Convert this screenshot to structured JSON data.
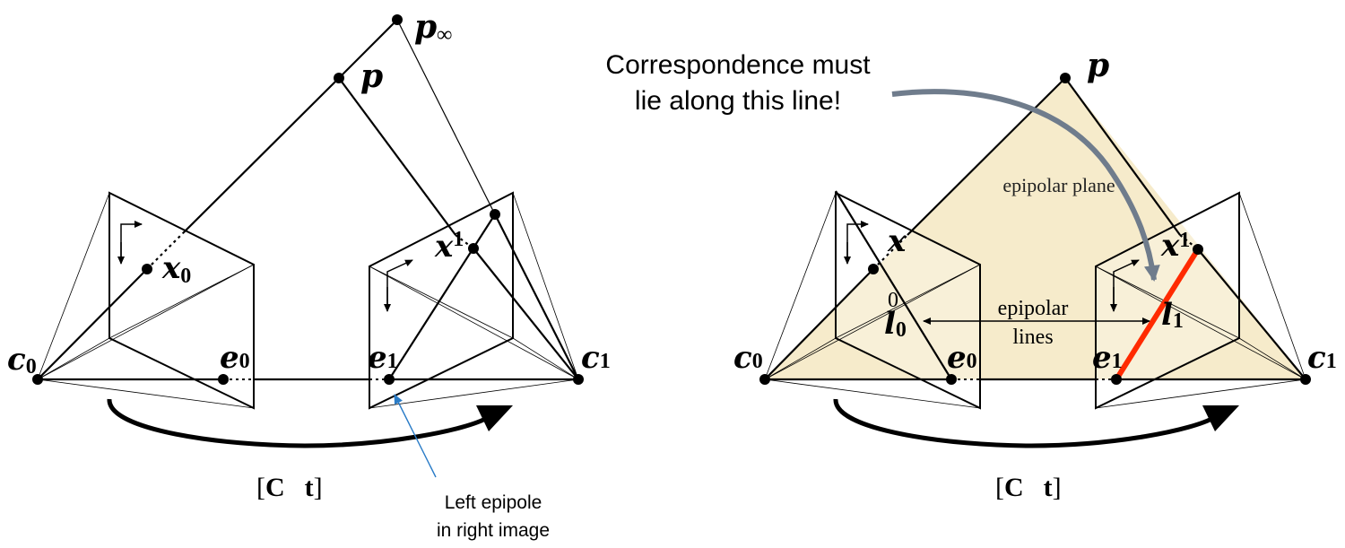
{
  "colors": {
    "line": "#000000",
    "plane_fill": "#f4e7c2",
    "highlight": "#ff2a00",
    "callout_arrow": "#6f7c8c",
    "epipole_pointer": "#2a7cc7"
  },
  "left_diagram": {
    "point_p": "p",
    "point_p_inf": "p",
    "point_p_inf_sub": "∞",
    "image_point_x": "x",
    "image_point_x_sub": "0",
    "image_point_x1": "x",
    "image_point_x1_sub": "1",
    "camera_c0": "c",
    "camera_c0_sub": "0",
    "camera_c1": "c",
    "camera_c1_sub": "1",
    "epipole_e0": "e",
    "epipole_e0_sub": "0",
    "epipole_e1": "e",
    "epipole_e1_sub": "1",
    "transform_open": "[",
    "transform_C": "C",
    "transform_t": "t",
    "transform_close": "]",
    "epipole_note_line1": "Left epipole",
    "epipole_note_line2": "in right image"
  },
  "right_diagram": {
    "point_p": "p",
    "image_point_x": "x",
    "image_point_x_sub": "0",
    "image_point_x1": "x",
    "image_point_x1_sub": "1",
    "line_l0": "l",
    "line_l0_sub": "0",
    "line_l1": "l",
    "line_l1_sub": "1",
    "camera_c0": "c",
    "camera_c0_sub": "0",
    "camera_c1": "c",
    "camera_c1_sub": "1",
    "epipole_e0": "e",
    "epipole_e0_sub": "0",
    "epipole_e1": "e",
    "epipole_e1_sub": "1",
    "plane_label": "epipolar plane",
    "lines_label_1": "epipolar",
    "lines_label_2": "lines",
    "transform_open": "[",
    "transform_C": "C",
    "transform_t": "t",
    "transform_close": "]",
    "callout_line1": "Correspondence must",
    "callout_line2": "lie along this line!"
  }
}
